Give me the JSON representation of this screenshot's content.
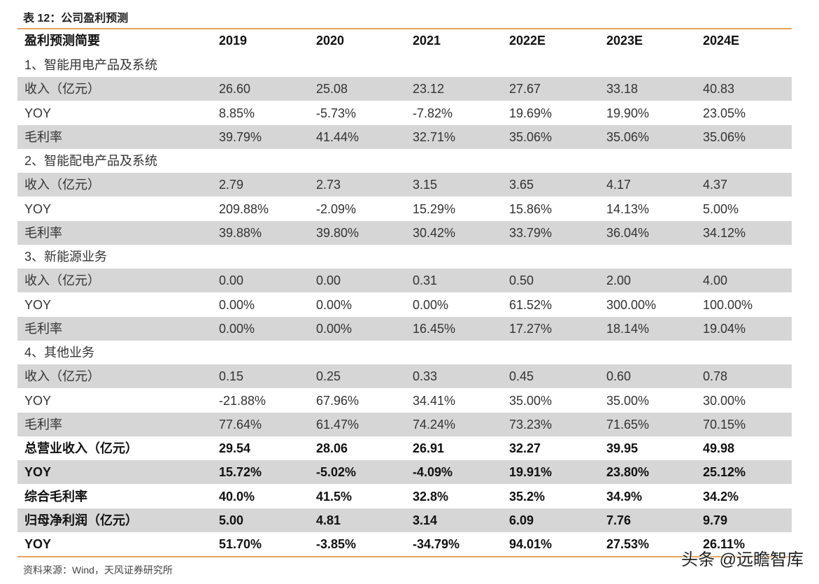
{
  "header": {
    "title": "表 12：公司盈利预测"
  },
  "table": {
    "columns": [
      "盈利预测简要",
      "2019",
      "2020",
      "2021",
      "2022E",
      "2023E",
      "2024E"
    ],
    "rows": [
      [
        "1、智能用电产品及系统"
      ],
      [
        "收入（亿元）",
        "26.60",
        "25.08",
        "23.12",
        "27.67",
        "33.18",
        "40.83"
      ],
      [
        "YOY",
        "8.85%",
        "-5.73%",
        "-7.82%",
        "19.69%",
        "19.90%",
        "23.05%"
      ],
      [
        "毛利率",
        "39.79%",
        "41.44%",
        "32.71%",
        "35.06%",
        "35.06%",
        "35.06%"
      ],
      [
        "2、智能配电产品及系统"
      ],
      [
        "收入（亿元）",
        "2.79",
        "2.73",
        "3.15",
        "3.65",
        "4.17",
        "4.37"
      ],
      [
        "YOY",
        "209.88%",
        "-2.09%",
        "15.29%",
        "15.86%",
        "14.13%",
        "5.00%"
      ],
      [
        "毛利率",
        "39.88%",
        "39.80%",
        "30.42%",
        "33.79%",
        "36.04%",
        "34.12%"
      ],
      [
        "3、新能源业务"
      ],
      [
        "收入（亿元）",
        "0.00",
        "0.00",
        "0.31",
        "0.50",
        "2.00",
        "4.00"
      ],
      [
        "YOY",
        "0.00%",
        "0.00%",
        "0.00%",
        "61.52%",
        "300.00%",
        "100.00%"
      ],
      [
        "毛利率",
        "0.00%",
        "0.00%",
        "16.45%",
        "17.27%",
        "18.14%",
        "19.04%"
      ],
      [
        "4、其他业务"
      ],
      [
        "收入（亿元）",
        "0.15",
        "0.25",
        "0.33",
        "0.45",
        "0.60",
        "0.78"
      ],
      [
        "YOY",
        "-21.88%",
        "67.96%",
        "34.41%",
        "35.00%",
        "35.00%",
        "30.00%"
      ],
      [
        "毛利率",
        "77.64%",
        "61.47%",
        "74.24%",
        "73.23%",
        "71.65%",
        "70.15%"
      ],
      [
        "总营业收入（亿元）",
        "29.54",
        "28.06",
        "26.91",
        "32.27",
        "39.95",
        "49.98"
      ],
      [
        "YOY",
        "15.72%",
        "-5.02%",
        "-4.09%",
        "19.91%",
        "23.80%",
        "25.12%"
      ],
      [
        "综合毛利率",
        "40.0%",
        "41.5%",
        "32.8%",
        "35.2%",
        "34.9%",
        "34.2%"
      ],
      [
        "归母净利润（亿元）",
        "5.00",
        "4.81",
        "3.14",
        "6.09",
        "7.76",
        "9.79"
      ],
      [
        "YOY",
        "51.70%",
        "-3.85%",
        "-34.79%",
        "94.01%",
        "27.53%",
        "26.11%"
      ]
    ]
  },
  "footer": {
    "source": "资料来源：Wind，天风证券研究所",
    "watermark": "头条 @远瞻智库"
  }
}
